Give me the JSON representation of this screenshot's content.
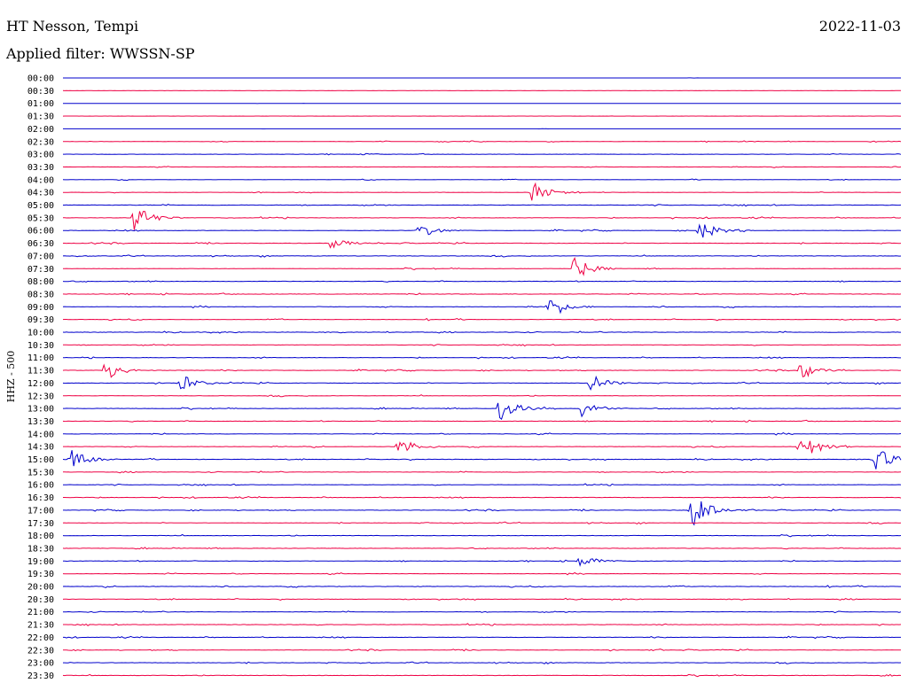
{
  "header": {
    "station": "HT Nesson, Tempi",
    "date": "2022-11-03",
    "filter": "Applied filter: WWSSN-SP"
  },
  "chart_data": {
    "type": "line",
    "title": "HT Nesson, Tempi",
    "subtitle": "Applied filter: WWSSN-SP",
    "ylabel": "HHZ - 500",
    "trace_colors": [
      "#0000cc",
      "#ee0044"
    ],
    "rows": [
      "00:00",
      "00:30",
      "01:00",
      "01:30",
      "02:00",
      "02:30",
      "03:00",
      "03:30",
      "04:00",
      "04:30",
      "05:00",
      "05:30",
      "06:00",
      "06:30",
      "07:00",
      "07:30",
      "08:00",
      "08:30",
      "09:00",
      "09:30",
      "10:00",
      "10:30",
      "11:00",
      "11:30",
      "12:00",
      "12:30",
      "13:00",
      "13:30",
      "14:00",
      "14:30",
      "15:00",
      "15:30",
      "16:00",
      "16:30",
      "17:00",
      "17:30",
      "18:00",
      "18:30",
      "19:00",
      "19:30",
      "20:00",
      "20:30",
      "21:00",
      "21:30",
      "22:00",
      "22:30",
      "23:00",
      "23:30"
    ],
    "events": [
      {
        "row": 9,
        "x": 0.56,
        "amp": 1.0
      },
      {
        "row": 11,
        "x": 0.085,
        "amp": 1.2
      },
      {
        "row": 12,
        "x": 0.425,
        "amp": 0.65
      },
      {
        "row": 12,
        "x": 0.76,
        "amp": 0.9
      },
      {
        "row": 13,
        "x": 0.32,
        "amp": 0.6
      },
      {
        "row": 15,
        "x": 0.61,
        "amp": 1.0
      },
      {
        "row": 18,
        "x": 0.58,
        "amp": 0.95
      },
      {
        "row": 23,
        "x": 0.05,
        "amp": 0.85
      },
      {
        "row": 23,
        "x": 0.88,
        "amp": 0.75
      },
      {
        "row": 24,
        "x": 0.14,
        "amp": 0.75
      },
      {
        "row": 24,
        "x": 0.63,
        "amp": 0.75
      },
      {
        "row": 26,
        "x": 0.52,
        "amp": 1.25
      },
      {
        "row": 26,
        "x": 0.62,
        "amp": 0.8
      },
      {
        "row": 29,
        "x": 0.4,
        "amp": 0.8
      },
      {
        "row": 29,
        "x": 0.88,
        "amp": 1.4
      },
      {
        "row": 30,
        "x": 0.01,
        "amp": 0.85
      },
      {
        "row": 30,
        "x": 0.97,
        "amp": 1.05
      },
      {
        "row": 34,
        "x": 0.75,
        "amp": 1.5
      },
      {
        "row": 38,
        "x": 0.615,
        "amp": 0.55
      }
    ]
  }
}
